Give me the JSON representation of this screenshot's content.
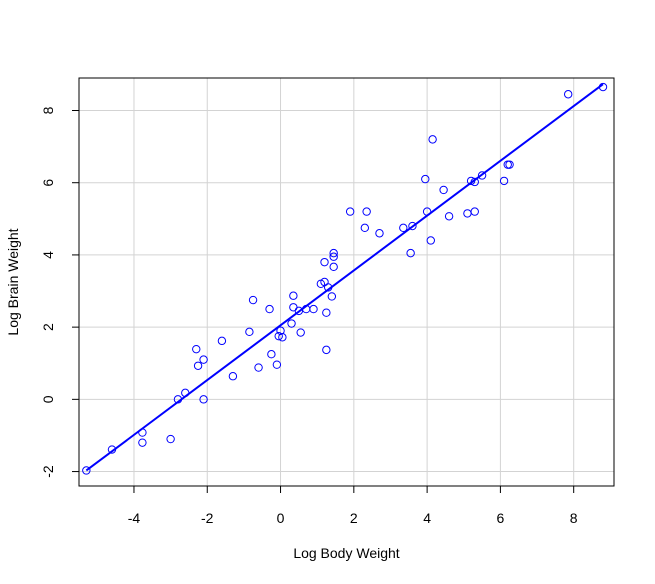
{
  "chart_data": {
    "type": "scatter",
    "title": "",
    "xlabel": "Log Body Weight",
    "ylabel": "Log Brain Weight",
    "xlim": [
      -5.5,
      9.1
    ],
    "ylim": [
      -2.4,
      8.9
    ],
    "xticks": [
      -4,
      -2,
      0,
      2,
      4,
      6,
      8
    ],
    "yticks": [
      -2,
      0,
      2,
      4,
      6,
      8
    ],
    "grid": true,
    "point_color": "#0000ff",
    "line_color": "#0000ff",
    "grid_color": "#d3d3d3",
    "fit_line": {
      "x": [
        -5.3,
        8.8
      ],
      "y": [
        -1.97,
        8.73
      ]
    },
    "points": [
      [
        -5.3,
        -1.97
      ],
      [
        -4.6,
        -1.39
      ],
      [
        -3.77,
        -0.92
      ],
      [
        -3.77,
        -1.2
      ],
      [
        -3.0,
        -1.1
      ],
      [
        -2.8,
        0.0
      ],
      [
        -2.6,
        0.18
      ],
      [
        -2.3,
        1.39
      ],
      [
        -2.25,
        0.93
      ],
      [
        -2.1,
        1.1
      ],
      [
        -2.1,
        0.0
      ],
      [
        -1.6,
        1.62
      ],
      [
        -1.3,
        0.64
      ],
      [
        -0.85,
        1.87
      ],
      [
        -0.75,
        2.75
      ],
      [
        -0.6,
        0.88
      ],
      [
        -0.3,
        2.5
      ],
      [
        -0.25,
        1.25
      ],
      [
        -0.1,
        0.96
      ],
      [
        -0.05,
        1.75
      ],
      [
        0.0,
        1.9
      ],
      [
        0.05,
        1.72
      ],
      [
        0.3,
        2.1
      ],
      [
        0.35,
        2.87
      ],
      [
        0.35,
        2.55
      ],
      [
        0.5,
        2.45
      ],
      [
        0.55,
        1.85
      ],
      [
        0.7,
        2.5
      ],
      [
        0.9,
        2.5
      ],
      [
        1.1,
        3.2
      ],
      [
        1.2,
        3.25
      ],
      [
        1.2,
        3.8
      ],
      [
        1.25,
        2.4
      ],
      [
        1.25,
        1.37
      ],
      [
        1.3,
        3.1
      ],
      [
        1.4,
        2.85
      ],
      [
        1.45,
        3.95
      ],
      [
        1.45,
        4.05
      ],
      [
        1.45,
        3.67
      ],
      [
        1.9,
        5.2
      ],
      [
        2.3,
        4.75
      ],
      [
        2.35,
        5.2
      ],
      [
        2.7,
        4.6
      ],
      [
        3.35,
        4.75
      ],
      [
        3.55,
        4.05
      ],
      [
        3.6,
        4.8
      ],
      [
        3.95,
        6.1
      ],
      [
        4.0,
        5.2
      ],
      [
        4.1,
        4.4
      ],
      [
        4.15,
        7.2
      ],
      [
        4.45,
        5.8
      ],
      [
        4.6,
        5.07
      ],
      [
        5.1,
        5.15
      ],
      [
        5.2,
        6.05
      ],
      [
        5.3,
        6.02
      ],
      [
        5.3,
        5.2
      ],
      [
        5.5,
        6.2
      ],
      [
        6.1,
        6.05
      ],
      [
        6.2,
        6.5
      ],
      [
        6.25,
        6.5
      ],
      [
        7.85,
        8.45
      ],
      [
        8.8,
        8.65
      ]
    ]
  }
}
